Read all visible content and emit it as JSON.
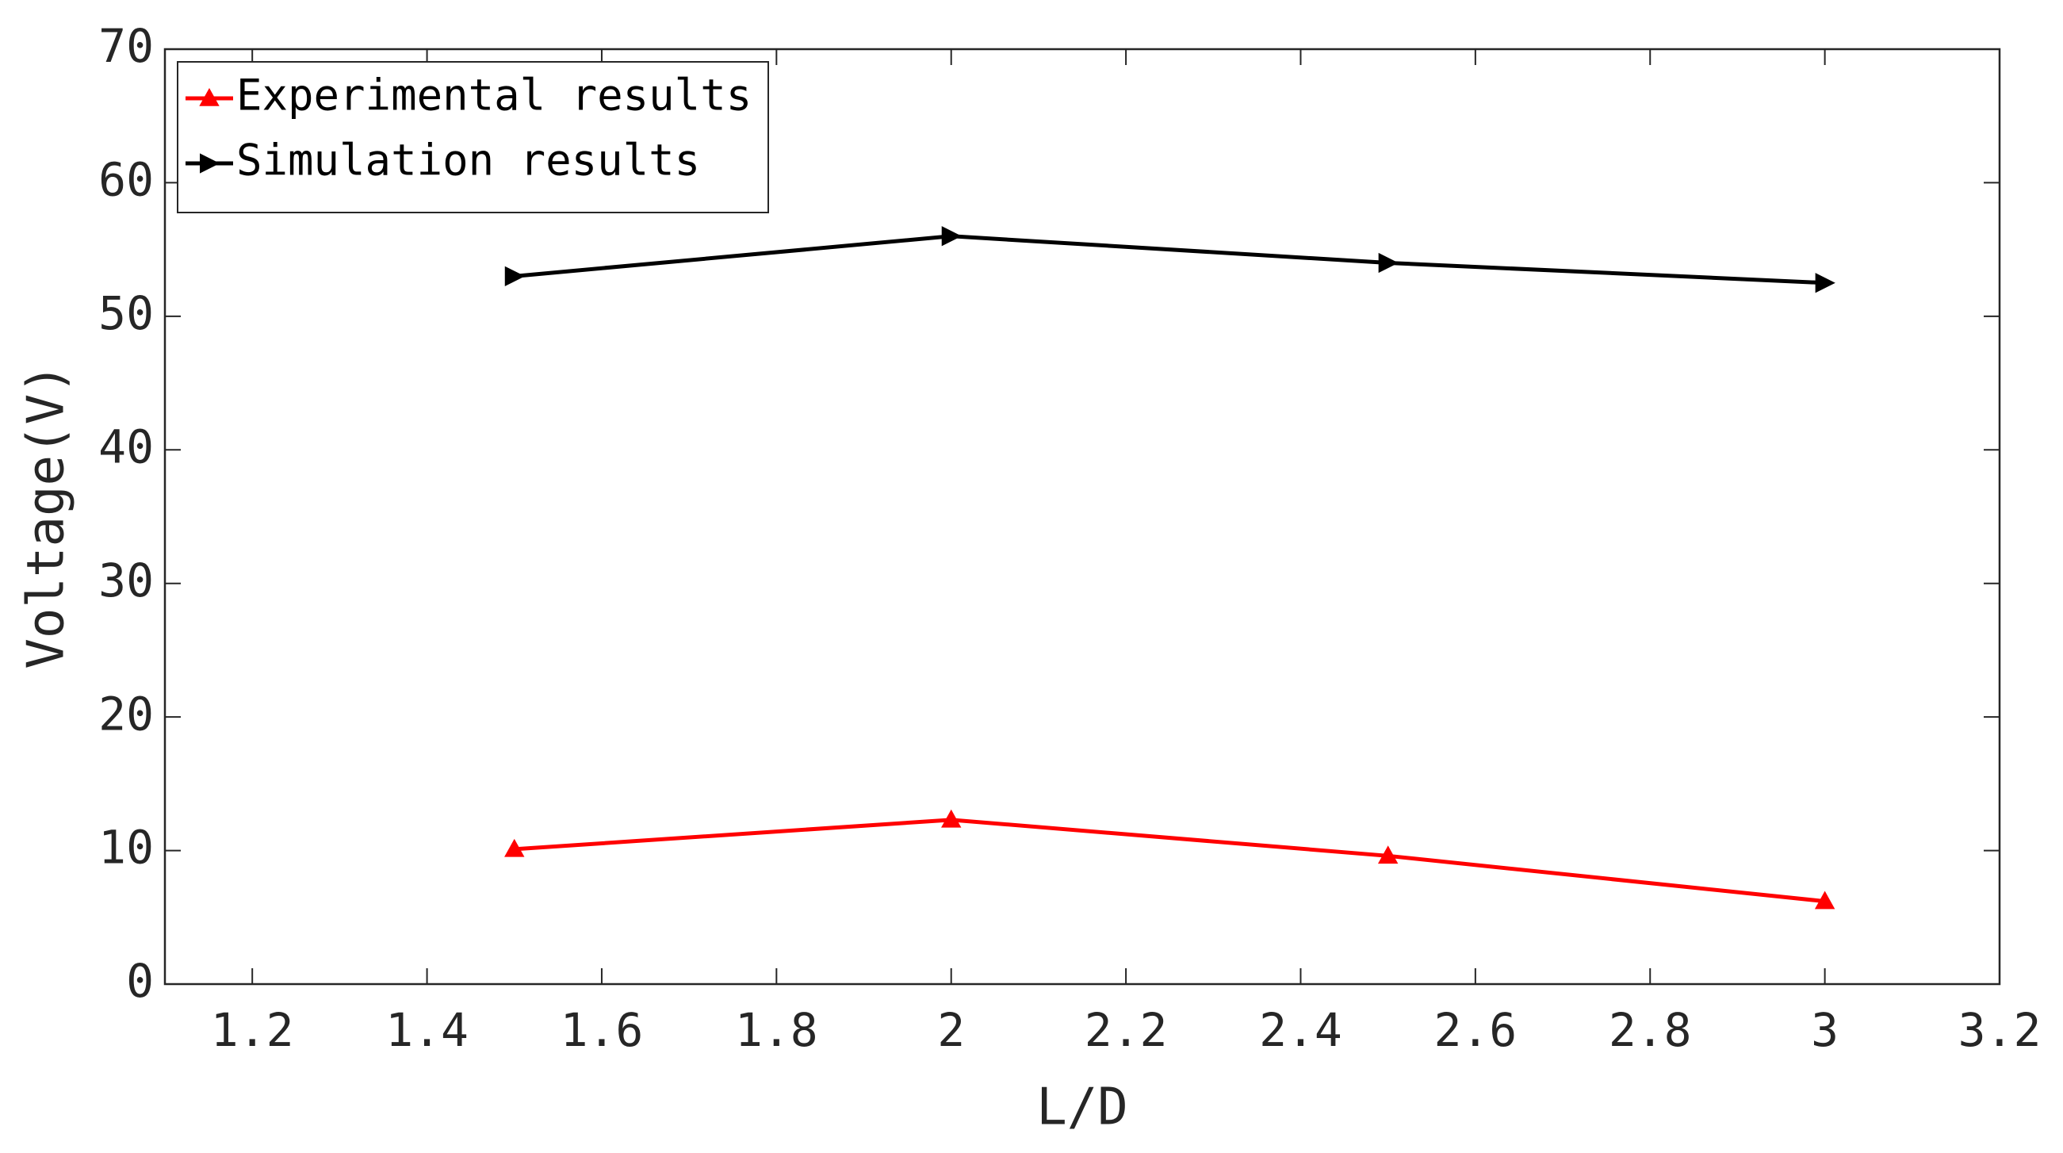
{
  "chart_data": {
    "type": "line",
    "x_label": "L/D",
    "y_label": "Voltage(V)",
    "x": [
      1.5,
      2,
      2.5,
      3
    ],
    "series": [
      {
        "name": "Experimental results",
        "color": "#ff0000",
        "marker": "triangle-up",
        "values": [
          10.1,
          12.3,
          9.6,
          6.2
        ]
      },
      {
        "name": "Simulation results",
        "color": "#000000",
        "marker": "triangle-right",
        "values": [
          53,
          56,
          54,
          52.5
        ]
      }
    ],
    "xlim": [
      1.1,
      3.2
    ],
    "xticks": [
      1.2,
      1.4,
      1.6,
      1.8,
      2,
      2.2,
      2.4,
      2.6,
      2.8,
      3,
      3.2
    ],
    "ylim": [
      0,
      70
    ],
    "yticks": [
      0,
      10,
      20,
      30,
      40,
      50,
      60,
      70
    ],
    "grid": false,
    "legend": "upper-left"
  }
}
